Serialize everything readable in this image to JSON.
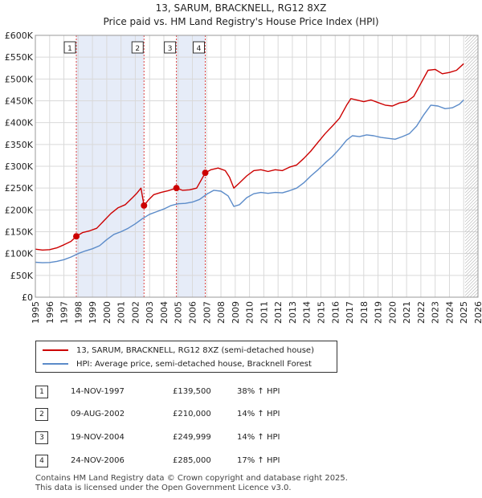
{
  "chart_data": {
    "type": "line",
    "title": "13, SARUM, BRACKNELL, RG12 8XZ",
    "subtitle": "Price paid vs. HM Land Registry's House Price Index (HPI)",
    "xlim": [
      1995,
      2026
    ],
    "ylim": [
      0,
      600000
    ],
    "xticks": [
      "1995",
      "1996",
      "1997",
      "1998",
      "1999",
      "2000",
      "2001",
      "2002",
      "2003",
      "2004",
      "2005",
      "2006",
      "2007",
      "2008",
      "2009",
      "2010",
      "2011",
      "2012",
      "2013",
      "2014",
      "2015",
      "2016",
      "2017",
      "2018",
      "2019",
      "2020",
      "2021",
      "2022",
      "2023",
      "2024",
      "2025",
      "2026"
    ],
    "yticks": [
      {
        "value": 0,
        "label": "£0"
      },
      {
        "value": 50000,
        "label": "£50K"
      },
      {
        "value": 100000,
        "label": "£100K"
      },
      {
        "value": 150000,
        "label": "£150K"
      },
      {
        "value": 200000,
        "label": "£200K"
      },
      {
        "value": 250000,
        "label": "£250K"
      },
      {
        "value": 300000,
        "label": "£300K"
      },
      {
        "value": 350000,
        "label": "£350K"
      },
      {
        "value": 400000,
        "label": "£400K"
      },
      {
        "value": 450000,
        "label": "£450K"
      },
      {
        "value": 500000,
        "label": "£500K"
      },
      {
        "value": 550000,
        "label": "£550K"
      },
      {
        "value": 600000,
        "label": "£600K"
      }
    ],
    "shaded_ranges": [
      [
        1997.87,
        2002.61
      ],
      [
        2004.88,
        2006.9
      ]
    ],
    "forecast_from": 2025.1,
    "series": [
      {
        "name": "13, SARUM, BRACKNELL, RG12 8XZ (semi-detached house)",
        "color": "#cc0000",
        "points": [
          [
            1995,
            110000
          ],
          [
            1995.5,
            108000
          ],
          [
            1996,
            109000
          ],
          [
            1996.5,
            113000
          ],
          [
            1997,
            120000
          ],
          [
            1997.5,
            128000
          ],
          [
            1997.87,
            139500
          ],
          [
            1998.3,
            148000
          ],
          [
            1998.8,
            152000
          ],
          [
            1999.3,
            158000
          ],
          [
            1999.8,
            175000
          ],
          [
            2000.3,
            192000
          ],
          [
            2000.8,
            205000
          ],
          [
            2001.3,
            212000
          ],
          [
            2001.8,
            228000
          ],
          [
            2002.1,
            238000
          ],
          [
            2002.4,
            250000
          ],
          [
            2002.61,
            210000
          ],
          [
            2002.9,
            222000
          ],
          [
            2003.3,
            235000
          ],
          [
            2003.8,
            240000
          ],
          [
            2004.3,
            244000
          ],
          [
            2004.88,
            249999
          ],
          [
            2005.3,
            245000
          ],
          [
            2005.8,
            246000
          ],
          [
            2006.3,
            250000
          ],
          [
            2006.9,
            285000
          ],
          [
            2007.3,
            292000
          ],
          [
            2007.8,
            296000
          ],
          [
            2008.3,
            290000
          ],
          [
            2008.6,
            275000
          ],
          [
            2008.9,
            250000
          ],
          [
            2009.3,
            262000
          ],
          [
            2009.8,
            278000
          ],
          [
            2010.3,
            290000
          ],
          [
            2010.8,
            292000
          ],
          [
            2011.3,
            288000
          ],
          [
            2011.8,
            292000
          ],
          [
            2012.3,
            290000
          ],
          [
            2012.8,
            298000
          ],
          [
            2013.3,
            303000
          ],
          [
            2013.8,
            318000
          ],
          [
            2014.3,
            335000
          ],
          [
            2014.8,
            355000
          ],
          [
            2015.3,
            375000
          ],
          [
            2015.8,
            392000
          ],
          [
            2016.3,
            410000
          ],
          [
            2016.8,
            440000
          ],
          [
            2017.1,
            455000
          ],
          [
            2017.5,
            452000
          ],
          [
            2018,
            448000
          ],
          [
            2018.5,
            452000
          ],
          [
            2019,
            446000
          ],
          [
            2019.5,
            440000
          ],
          [
            2020,
            438000
          ],
          [
            2020.5,
            445000
          ],
          [
            2021,
            448000
          ],
          [
            2021.5,
            460000
          ],
          [
            2022,
            490000
          ],
          [
            2022.5,
            520000
          ],
          [
            2023,
            522000
          ],
          [
            2023.5,
            512000
          ],
          [
            2024,
            515000
          ],
          [
            2024.5,
            520000
          ],
          [
            2025,
            535000
          ]
        ]
      },
      {
        "name": "HPI: Average price, semi-detached house, Bracknell Forest",
        "color": "#5b8bc9",
        "points": [
          [
            1995,
            80000
          ],
          [
            1995.5,
            79000
          ],
          [
            1996,
            79500
          ],
          [
            1996.5,
            82000
          ],
          [
            1997,
            86000
          ],
          [
            1997.5,
            92000
          ],
          [
            1998,
            100000
          ],
          [
            1998.5,
            106000
          ],
          [
            1999,
            111000
          ],
          [
            1999.5,
            118000
          ],
          [
            2000,
            132000
          ],
          [
            2000.5,
            144000
          ],
          [
            2001,
            150000
          ],
          [
            2001.5,
            158000
          ],
          [
            2002,
            168000
          ],
          [
            2002.5,
            180000
          ],
          [
            2003,
            190000
          ],
          [
            2003.5,
            196000
          ],
          [
            2004,
            202000
          ],
          [
            2004.5,
            210000
          ],
          [
            2005,
            214000
          ],
          [
            2005.5,
            215000
          ],
          [
            2006,
            218000
          ],
          [
            2006.5,
            224000
          ],
          [
            2007,
            236000
          ],
          [
            2007.5,
            245000
          ],
          [
            2008,
            243000
          ],
          [
            2008.5,
            232000
          ],
          [
            2008.9,
            208000
          ],
          [
            2009.3,
            212000
          ],
          [
            2009.8,
            228000
          ],
          [
            2010.3,
            237000
          ],
          [
            2010.8,
            240000
          ],
          [
            2011.3,
            238000
          ],
          [
            2011.8,
            240000
          ],
          [
            2012.3,
            239000
          ],
          [
            2012.8,
            244000
          ],
          [
            2013.3,
            250000
          ],
          [
            2013.8,
            262000
          ],
          [
            2014.3,
            278000
          ],
          [
            2014.8,
            292000
          ],
          [
            2015.3,
            308000
          ],
          [
            2015.8,
            322000
          ],
          [
            2016.3,
            340000
          ],
          [
            2016.8,
            360000
          ],
          [
            2017.2,
            370000
          ],
          [
            2017.7,
            368000
          ],
          [
            2018.2,
            372000
          ],
          [
            2018.7,
            370000
          ],
          [
            2019.2,
            366000
          ],
          [
            2019.7,
            364000
          ],
          [
            2020.2,
            362000
          ],
          [
            2020.7,
            368000
          ],
          [
            2021.2,
            375000
          ],
          [
            2021.7,
            392000
          ],
          [
            2022.2,
            418000
          ],
          [
            2022.7,
            440000
          ],
          [
            2023.2,
            438000
          ],
          [
            2023.7,
            432000
          ],
          [
            2024.2,
            434000
          ],
          [
            2024.7,
            442000
          ],
          [
            2025,
            452000
          ]
        ]
      }
    ],
    "sales": [
      {
        "label": "1",
        "x": 1997.87,
        "y": 139500
      },
      {
        "label": "2",
        "x": 2002.61,
        "y": 210000
      },
      {
        "label": "3",
        "x": 2004.88,
        "y": 249999
      },
      {
        "label": "4",
        "x": 2006.9,
        "y": 285000
      }
    ]
  },
  "legend": {
    "property": "13, SARUM, BRACKNELL, RG12 8XZ (semi-detached house)",
    "hpi": "HPI: Average price, semi-detached house, Bracknell Forest"
  },
  "table": [
    {
      "num": "1",
      "date": "14-NOV-1997",
      "price": "£139,500",
      "pct": "38% ↑ HPI"
    },
    {
      "num": "2",
      "date": "09-AUG-2002",
      "price": "£210,000",
      "pct": "14% ↑ HPI"
    },
    {
      "num": "3",
      "date": "19-NOV-2004",
      "price": "£249,999",
      "pct": "14% ↑ HPI"
    },
    {
      "num": "4",
      "date": "24-NOV-2006",
      "price": "£285,000",
      "pct": "17% ↑ HPI"
    }
  ],
  "footer": {
    "line1": "Contains HM Land Registry data © Crown copyright and database right 2025.",
    "line2": "This data is licensed under the Open Government Licence v3.0."
  },
  "colors": {
    "property": "#cc0000",
    "hpi": "#5b8bc9",
    "shade": "#e6ecf8",
    "grid": "#d9d9d9"
  }
}
